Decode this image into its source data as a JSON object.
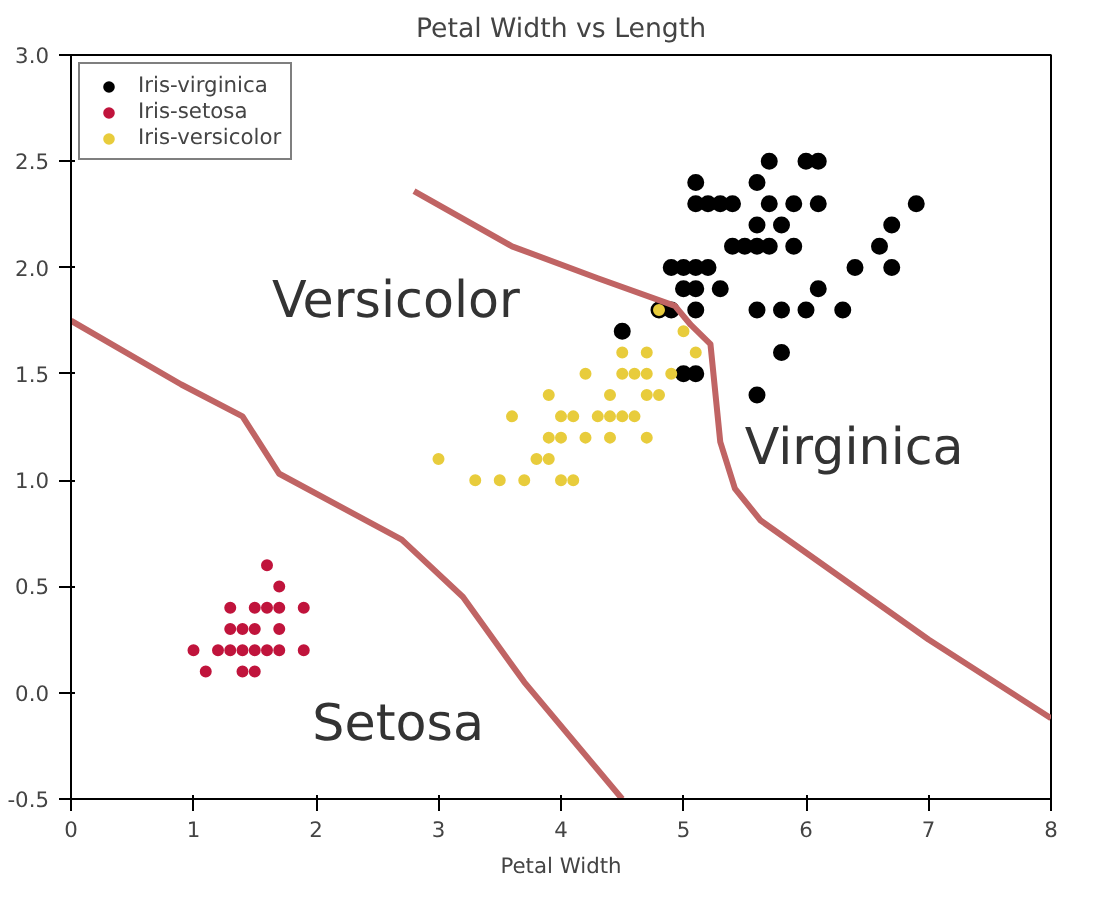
{
  "chart_data": {
    "type": "scatter",
    "title": "Petal Width vs Length",
    "xlabel": "Petal Width",
    "xlim": [
      0,
      8
    ],
    "ylim": [
      -0.5,
      3.0
    ],
    "xticks": [
      0,
      1,
      2,
      3,
      4,
      5,
      6,
      7,
      8
    ],
    "yticks": [
      {
        "value": -0.5,
        "label": "-0.5"
      },
      {
        "value": 0,
        "label": "0.0"
      },
      {
        "value": 0.5,
        "label": "0.5"
      },
      {
        "value": 1,
        "label": "1.0"
      },
      {
        "value": 1.5,
        "label": "1.5"
      },
      {
        "value": 2,
        "label": "2.0"
      },
      {
        "value": 2.5,
        "label": "2.5"
      },
      {
        "value": 3,
        "label": "3.0"
      }
    ],
    "grid": false,
    "legend": "top left",
    "series": [
      {
        "name": "Iris-virginica",
        "color": "#000000",
        "marker": "circle",
        "x": [
          6.0,
          5.1,
          5.9,
          5.6,
          5.8,
          6.6,
          4.5,
          6.3,
          5.8,
          6.1,
          5.1,
          5.3,
          5.5,
          5.0,
          5.1,
          5.3,
          6.7,
          6.9,
          5.0,
          5.7,
          4.9,
          6.7,
          4.9,
          5.7,
          6.0,
          4.8,
          5.6,
          5.8,
          6.1,
          6.4,
          5.6,
          5.1,
          5.6,
          6.1,
          5.6,
          5.4,
          5.1,
          5.9,
          5.7,
          5.2,
          5.0,
          5.2,
          5.4,
          5.1
        ],
        "values": [
          2.5,
          1.9,
          2.1,
          1.8,
          2.2,
          2.1,
          1.7,
          1.8,
          1.8,
          2.5,
          2.0,
          1.9,
          2.1,
          2.0,
          2.4,
          2.3,
          2.2,
          2.3,
          1.5,
          2.3,
          2.0,
          2.0,
          1.8,
          2.1,
          1.8,
          1.8,
          2.1,
          1.6,
          1.9,
          2.0,
          2.2,
          1.5,
          1.4,
          2.3,
          2.4,
          2.1,
          2.3,
          2.3,
          2.5,
          2.3,
          1.9,
          2.0,
          2.3,
          1.8
        ]
      },
      {
        "name": "Iris-setosa",
        "color": "#c0143c",
        "marker": "circle",
        "x": [
          1.6,
          1.7,
          1.3,
          1.5,
          1.6,
          1.7,
          1.9,
          1.3,
          1.4,
          1.5,
          1.7,
          1.0,
          1.2,
          1.3,
          1.4,
          1.5,
          1.6,
          1.7,
          1.9,
          1.1,
          1.4,
          1.5
        ],
        "values": [
          0.6,
          0.5,
          0.4,
          0.4,
          0.4,
          0.4,
          0.4,
          0.3,
          0.3,
          0.3,
          0.3,
          0.2,
          0.2,
          0.2,
          0.2,
          0.2,
          0.2,
          0.2,
          0.2,
          0.1,
          0.1,
          0.1
        ]
      },
      {
        "name": "Iris-versicolor",
        "color": "#e8cc3c",
        "marker": "circle",
        "x": [
          4.7,
          4.5,
          4.9,
          4.0,
          4.6,
          4.5,
          4.7,
          3.3,
          4.6,
          3.9,
          3.5,
          4.2,
          4.0,
          3.6,
          4.4,
          4.1,
          3.9,
          4.8,
          4.7,
          4.3,
          4.8,
          5.0,
          3.8,
          3.7,
          3.9,
          5.1,
          4.5,
          4.4,
          4.1,
          4.4,
          4.0,
          4.2,
          3.0,
          4.7
        ],
        "values": [
          1.4,
          1.5,
          1.5,
          1.3,
          1.5,
          1.3,
          1.6,
          1.0,
          1.3,
          1.4,
          1.0,
          1.5,
          1.0,
          1.3,
          1.4,
          1.0,
          1.1,
          1.8,
          1.2,
          1.3,
          1.4,
          1.7,
          1.1,
          1.0,
          1.2,
          1.6,
          1.6,
          1.3,
          1.3,
          1.2,
          1.2,
          1.2,
          1.1,
          1.5
        ]
      },
      {
        "type": "line",
        "color": "#c06464",
        "x": [
          0,
          0.9,
          1.4,
          1.7,
          2.7,
          3.2,
          3.7,
          4.5
        ],
        "values": [
          1.75,
          1.45,
          1.3,
          1.03,
          0.72,
          0.45,
          0.05,
          -0.5
        ]
      },
      {
        "type": "line",
        "color": "#c06464",
        "x": [
          2.8,
          3.6,
          4.3,
          4.93,
          5.06,
          5.22,
          5.3,
          5.42,
          5.63,
          7.0,
          8.0
        ],
        "values": [
          2.36,
          2.1,
          1.95,
          1.82,
          1.73,
          1.64,
          1.18,
          0.96,
          0.81,
          0.25,
          -0.12
        ]
      }
    ],
    "annotations": [
      "Versicolor",
      "Setosa",
      "Virginica"
    ]
  }
}
